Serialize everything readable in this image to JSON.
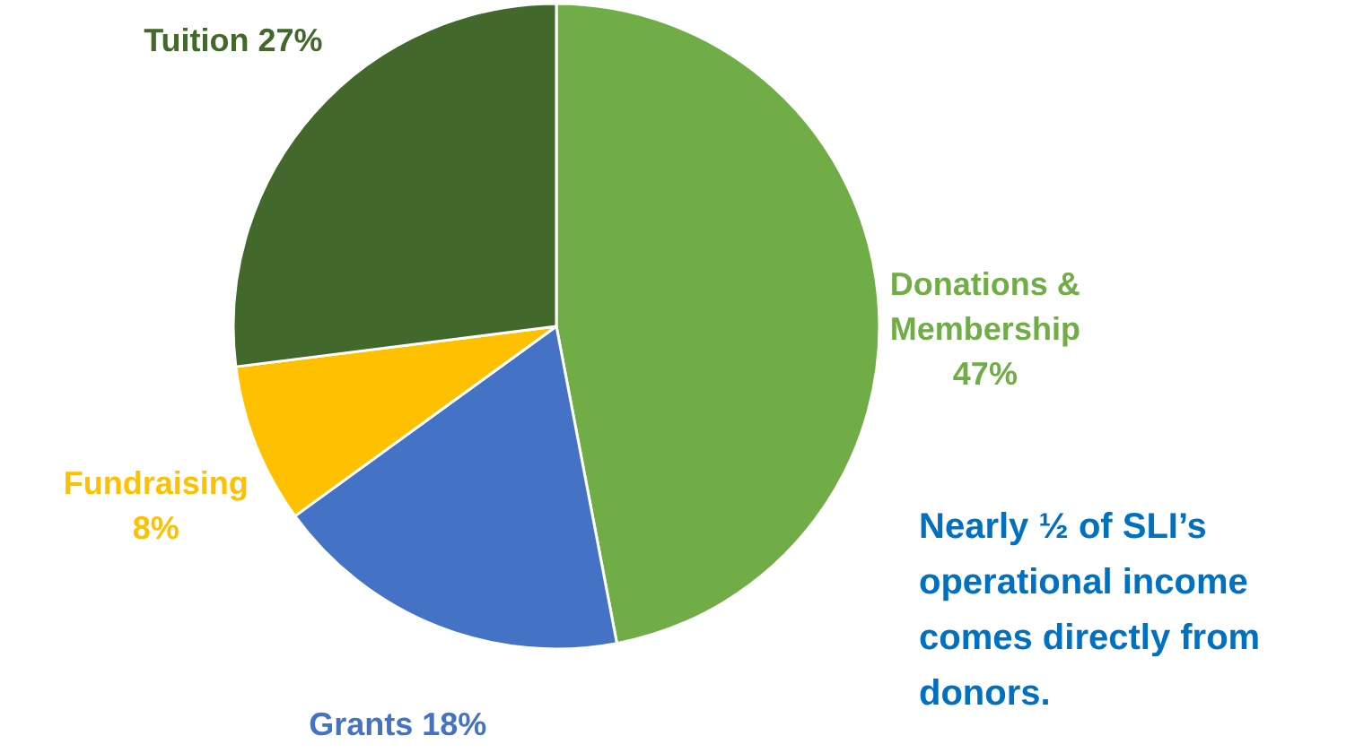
{
  "chart_data": {
    "type": "pie",
    "categories": [
      "Donations & Membership",
      "Grants",
      "Fundraising",
      "Tuition"
    ],
    "values": [
      47,
      18,
      8,
      27
    ],
    "value_labels": [
      "47%",
      "18%",
      "8%",
      "27%"
    ],
    "colors": [
      "#70ad47",
      "#4472c4",
      "#ffc000",
      "#43682b"
    ],
    "annotations": [
      "Nearly ½ of SLI’s operational income comes directly from donors."
    ]
  }
}
